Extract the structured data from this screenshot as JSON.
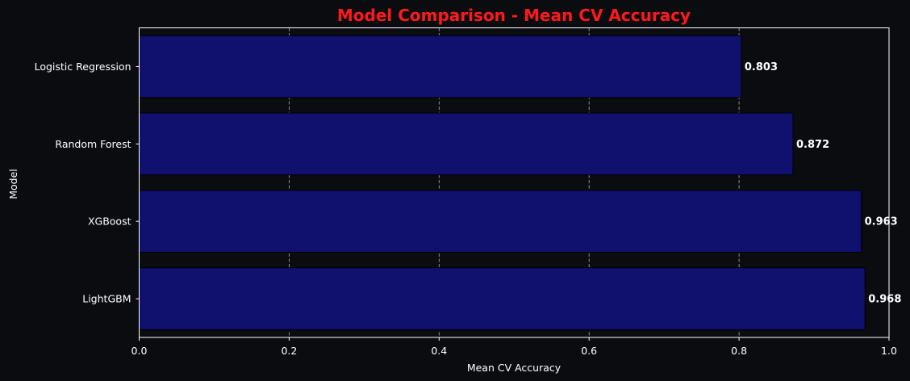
{
  "chart_data": {
    "type": "bar",
    "orientation": "horizontal",
    "title": "Model Comparison - Mean CV Accuracy",
    "xlabel": "Mean CV Accuracy",
    "ylabel": "Model",
    "categories": [
      "Logistic Regression",
      "Random Forest",
      "XGBoost",
      "LightGBM"
    ],
    "values": [
      0.803,
      0.872,
      0.963,
      0.968
    ],
    "value_labels": [
      "0.803",
      "0.872",
      "0.963",
      "0.968"
    ],
    "xlim": [
      0,
      1.0
    ],
    "xticks": [
      0,
      0.2,
      0.4,
      0.6,
      0.8,
      1.0
    ],
    "xtick_labels": [
      "0.0",
      "0.2",
      "0.4",
      "0.6",
      "0.8",
      "1.0"
    ],
    "grid": "vertical dashed",
    "colors": {
      "background": "#0b0c10",
      "bar": "#10106e",
      "bar_edge": "#000000",
      "title": "#ff1a1a",
      "text": "#ffffff",
      "grid": "#cfcfcf"
    }
  }
}
